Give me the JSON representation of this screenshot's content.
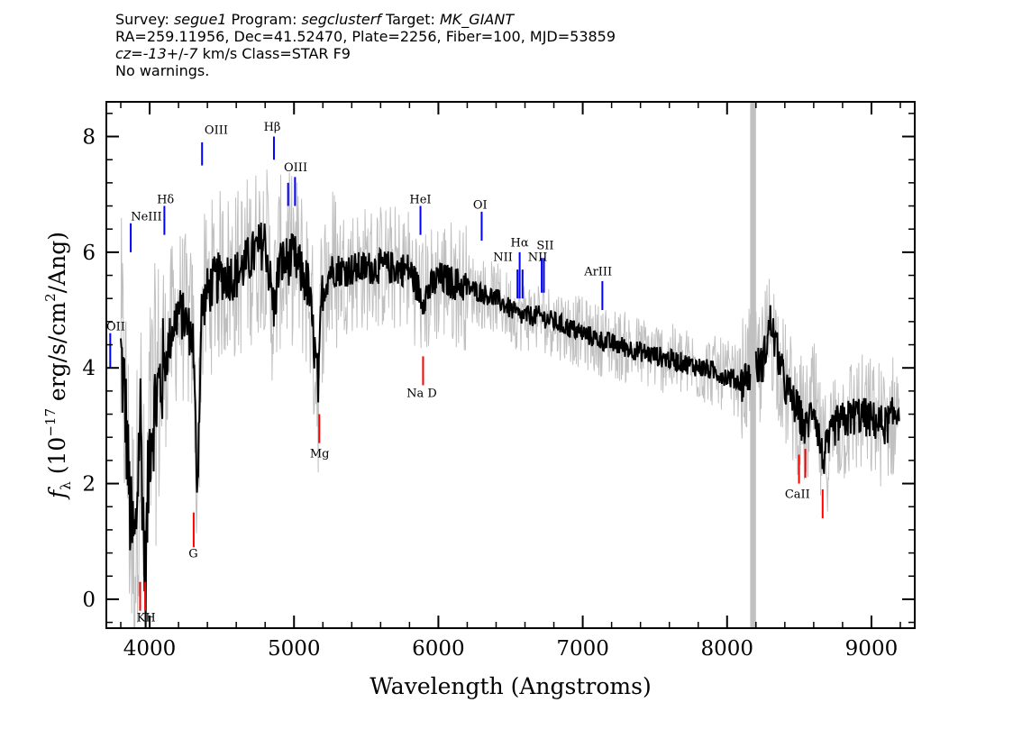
{
  "header": {
    "line1": {
      "survey_label": "Survey: ",
      "survey": "segue1",
      "program_label": " Program: ",
      "program": "segclusterf",
      "target_label": " Target: ",
      "target": "MK_GIANT"
    },
    "line2": "RA=259.11956, Dec=41.52470, Plate=2256, Fiber=100, MJD=53859",
    "line3": {
      "cz_label": "cz",
      "cz_eq": "=",
      "cz_value": "-13",
      "cz_pm": "+/",
      "cz_err": "-7",
      "cz_rest": " km/s Class=STAR F9"
    },
    "line4": "No warnings."
  },
  "chart_data": {
    "type": "line",
    "xlabel": "Wavelength (Angstroms)",
    "ylabel_parts": {
      "f": "f",
      "lambda": "λ",
      "open": " (10",
      "exp": "−17",
      "unit": " erg/s/cm",
      "sq": "2",
      "close": "/Ang)"
    },
    "xlim": [
      3700,
      9300
    ],
    "ylim": [
      -0.5,
      8.6
    ],
    "xticks": [
      4000,
      5000,
      6000,
      7000,
      8000,
      9000
    ],
    "yticks": [
      0,
      2,
      4,
      6,
      8
    ],
    "colors": {
      "spectrum": "#000000",
      "error": "#c0c0c0",
      "emission": "#0000ff",
      "absorption": "#ff0000",
      "mask": "#c0c0c0"
    },
    "masked_band": [
      8160,
      8200
    ],
    "spectrum_anchors": {
      "x": [
        3800,
        3830,
        3870,
        3900,
        3935,
        3970,
        4000,
        4050,
        4100,
        4150,
        4200,
        4250,
        4300,
        4330,
        4360,
        4400,
        4450,
        4500,
        4600,
        4700,
        4800,
        4860,
        4900,
        5000,
        5100,
        5170,
        5190,
        5250,
        5400,
        5600,
        5800,
        5890,
        6000,
        6200,
        6400,
        6563,
        6700,
        6900,
        7100,
        7300,
        7600,
        7900,
        8100,
        8150,
        8250,
        8300,
        8400,
        8500,
        8542,
        8600,
        8662,
        8750,
        8900,
        9000,
        9100,
        9190
      ],
      "y": [
        4.2,
        3.4,
        1.2,
        0.9,
        3.3,
        0.2,
        2.8,
        3.5,
        4.0,
        4.6,
        5.0,
        4.8,
        4.5,
        1.9,
        5.0,
        5.3,
        5.5,
        5.6,
        5.6,
        5.9,
        6.2,
        5.0,
        5.8,
        5.9,
        5.4,
        3.6,
        5.2,
        5.7,
        5.7,
        5.75,
        5.7,
        5.2,
        5.55,
        5.4,
        5.2,
        4.9,
        4.9,
        4.7,
        4.5,
        4.35,
        4.15,
        3.95,
        3.75,
        3.9,
        4.1,
        4.8,
        3.7,
        3.2,
        2.9,
        3.4,
        2.4,
        3.0,
        3.2,
        3.1,
        3.0,
        3.3
      ]
    },
    "emission_lines": [
      {
        "label": "OII",
        "wavelength": 3727,
        "y_top": 4.6,
        "y_bot": 4.0
      },
      {
        "label": "NeIII",
        "wavelength": 3869,
        "y_top": 6.5,
        "y_bot": 6.0
      },
      {
        "label": "Hδ",
        "wavelength": 4102,
        "y_top": 6.8,
        "y_bot": 6.3
      },
      {
        "label": "OIII",
        "wavelength": 4363,
        "y_top": 7.9,
        "y_bot": 7.5
      },
      {
        "label": "Hβ",
        "wavelength": 4861,
        "y_top": 8.0,
        "y_bot": 7.6
      },
      {
        "label": "OIII",
        "wavelength": 4959,
        "y_top": 7.2,
        "y_bot": 6.8
      },
      {
        "label": "OIII",
        "wavelength": 5007,
        "y_top": 7.3,
        "y_bot": 6.8
      },
      {
        "label": "HeI",
        "wavelength": 5876,
        "y_top": 6.8,
        "y_bot": 6.3
      },
      {
        "label": "OI",
        "wavelength": 6300,
        "y_top": 6.7,
        "y_bot": 6.2
      },
      {
        "label": "NII",
        "wavelength": 6548,
        "y_top": 5.7,
        "y_bot": 5.2
      },
      {
        "label": "Hα",
        "wavelength": 6563,
        "y_top": 6.0,
        "y_bot": 5.2
      },
      {
        "label": "NII",
        "wavelength": 6583,
        "y_top": 5.7,
        "y_bot": 5.2
      },
      {
        "label": "SII",
        "wavelength": 6716,
        "y_top": 5.9,
        "y_bot": 5.3
      },
      {
        "label": "SII",
        "wavelength": 6731,
        "y_top": 5.9,
        "y_bot": 5.3
      },
      {
        "label": "ArIII",
        "wavelength": 7136,
        "y_top": 5.5,
        "y_bot": 5.0
      }
    ],
    "emission_labels": [
      {
        "text": "OII",
        "wavelength": 3700,
        "y": 4.65
      },
      {
        "text": "NeIII",
        "wavelength": 3870,
        "y": 6.55
      },
      {
        "text": "Hδ",
        "wavelength": 4050,
        "y": 6.85
      },
      {
        "text": "OIII",
        "wavelength": 4380,
        "y": 8.05
      },
      {
        "text": "Hβ",
        "wavelength": 4790,
        "y": 8.1
      },
      {
        "text": "OIII",
        "wavelength": 4930,
        "y": 7.4
      },
      {
        "text": "HeI",
        "wavelength": 5800,
        "y": 6.85
      },
      {
        "text": "OI",
        "wavelength": 6240,
        "y": 6.75
      },
      {
        "text": "NII",
        "wavelength": 6380,
        "y": 5.85
      },
      {
        "text": "Hα",
        "wavelength": 6500,
        "y": 6.1
      },
      {
        "text": "NII",
        "wavelength": 6620,
        "y": 5.85
      },
      {
        "text": "SII",
        "wavelength": 6680,
        "y": 6.05
      },
      {
        "text": "ArIII",
        "wavelength": 7010,
        "y": 5.6
      }
    ],
    "absorption_lines": [
      {
        "label": "K",
        "wavelength": 3934,
        "y_top": 0.3,
        "y_bot": -0.2
      },
      {
        "label": "H",
        "wavelength": 3969,
        "y_top": 0.3,
        "y_bot": -0.2
      },
      {
        "label": "G",
        "wavelength": 4305,
        "y_top": 1.5,
        "y_bot": 0.9
      },
      {
        "label": "Mg",
        "wavelength": 5175,
        "y_top": 3.2,
        "y_bot": 2.7
      },
      {
        "label": "Na D",
        "wavelength": 5894,
        "y_top": 4.2,
        "y_bot": 3.7
      },
      {
        "label": "CaII",
        "wavelength": 8498,
        "y_top": 2.5,
        "y_bot": 2.0
      },
      {
        "label": "CaII",
        "wavelength": 8542,
        "y_top": 2.6,
        "y_bot": 2.1
      },
      {
        "label": "CaII",
        "wavelength": 8662,
        "y_top": 1.9,
        "y_bot": 1.4
      }
    ],
    "absorption_labels": [
      {
        "text": "KH",
        "wavelength": 3910,
        "y": -0.38
      },
      {
        "text": "G",
        "wavelength": 4270,
        "y": 0.72
      },
      {
        "text": "Mg",
        "wavelength": 5110,
        "y": 2.45
      },
      {
        "text": "Na D",
        "wavelength": 5780,
        "y": 3.5
      },
      {
        "text": "CaII",
        "wavelength": 8400,
        "y": 1.75
      }
    ]
  }
}
